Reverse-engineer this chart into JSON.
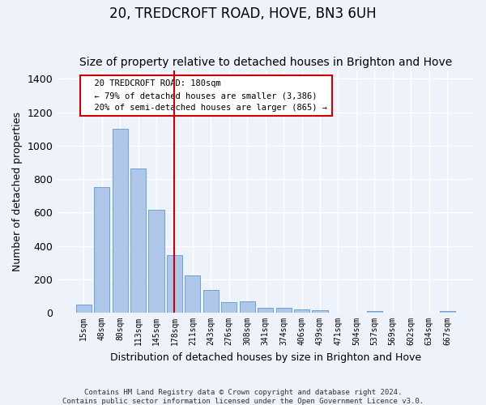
{
  "title": "20, TREDCROFT ROAD, HOVE, BN3 6UH",
  "subtitle": "Size of property relative to detached houses in Brighton and Hove",
  "xlabel": "Distribution of detached houses by size in Brighton and Hove",
  "ylabel": "Number of detached properties",
  "footnote1": "Contains HM Land Registry data © Crown copyright and database right 2024.",
  "footnote2": "Contains public sector information licensed under the Open Government Licence v3.0.",
  "bar_labels": [
    "15sqm",
    "48sqm",
    "80sqm",
    "113sqm",
    "145sqm",
    "178sqm",
    "211sqm",
    "243sqm",
    "276sqm",
    "308sqm",
    "341sqm",
    "374sqm",
    "406sqm",
    "439sqm",
    "471sqm",
    "504sqm",
    "537sqm",
    "569sqm",
    "602sqm",
    "634sqm",
    "667sqm"
  ],
  "bar_values": [
    50,
    750,
    1100,
    865,
    615,
    345,
    225,
    135,
    65,
    70,
    30,
    30,
    22,
    14,
    0,
    0,
    12,
    0,
    0,
    0,
    12
  ],
  "bar_color": "#aec6e8",
  "bar_edge_color": "#5b9bd5",
  "vline_x": 5.0,
  "vline_color": "#cc0000",
  "annotation_text": "  20 TREDCROFT ROAD: 180sqm\n  ← 79% of detached houses are smaller (3,386)\n  20% of semi-detached houses are larger (865) →",
  "annotation_box_color": "#ffffff",
  "annotation_box_edge": "#cc0000",
  "ylim": [
    0,
    1450
  ],
  "background_color": "#eef2fa",
  "grid_color": "#ffffff",
  "title_fontsize": 12,
  "subtitle_fontsize": 10,
  "ylabel_fontsize": 9,
  "xlabel_fontsize": 9,
  "tick_fontsize": 7,
  "footnote_fontsize": 6.5
}
